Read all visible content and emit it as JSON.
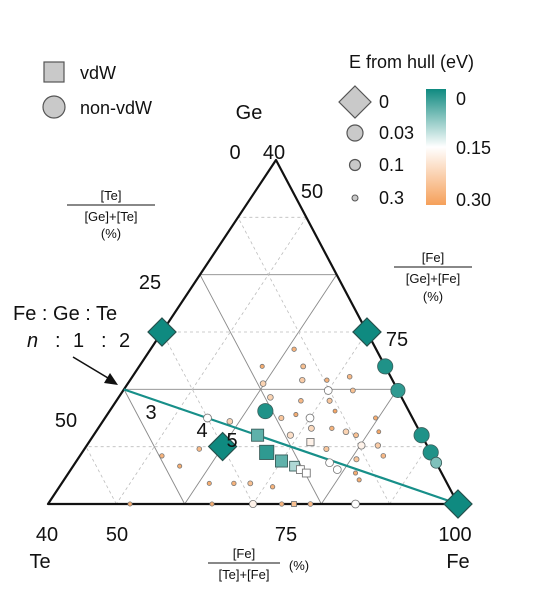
{
  "chart_data": {
    "type": "scatter",
    "title": "",
    "vertices": {
      "top": "Ge",
      "left": "Te",
      "right": "Fe"
    },
    "corner_values": {
      "top": "40",
      "top_left": "0",
      "left": "40",
      "right": "100"
    },
    "ticks": {
      "te_axis": [
        "25",
        "50"
      ],
      "fe_axis_right": [
        "50",
        "75"
      ],
      "fe_axis_bottom": [
        "50",
        "75"
      ]
    },
    "axis_labels": {
      "te": {
        "num": "[Te]",
        "den": "[Ge]+[Te]",
        "unit": "(%)"
      },
      "fe_right": {
        "num": "[Fe]",
        "den": "[Ge]+[Fe]",
        "unit": "(%)"
      },
      "fe_bottom": {
        "num": "[Fe]",
        "den": "[Te]+[Fe]",
        "unit": "(%)"
      }
    },
    "legend": {
      "types": [
        {
          "label": "vdW",
          "shape": "square"
        },
        {
          "label": "non-vdW",
          "shape": "circle"
        }
      ],
      "hull_title": "E from hull (eV)",
      "sizes": [
        "0",
        "0.03",
        "0.1",
        "0.3"
      ],
      "colorbar": {
        "ticks": [
          "0",
          "0.15",
          "0.30"
        ],
        "colors": [
          "#0f8a80",
          "#ffffff",
          "#f5a05a"
        ]
      }
    },
    "annotation": {
      "line1": "Fe : Ge : Te",
      "line2": [
        "n",
        ":",
        "1",
        ":",
        "2"
      ],
      "series_labels": [
        "3",
        "4",
        "5"
      ]
    },
    "series_line_color": "#178f89",
    "points": [
      {
        "fe": 0,
        "ge": 50,
        "te": 50,
        "shape": "diamond",
        "e": 0
      },
      {
        "fe": 50,
        "ge": 50,
        "te": 0,
        "shape": "diamond",
        "e": 0
      },
      {
        "fe": 100,
        "ge": 0,
        "te": 0,
        "shape": "diamond",
        "e": 0
      },
      {
        "fe": 33.3,
        "ge": 16.7,
        "te": 50,
        "shape": "diamond",
        "e": 0
      },
      {
        "fe": 60,
        "ge": 40,
        "te": 0,
        "shape": "circle",
        "e": 0.01
      },
      {
        "fe": 67,
        "ge": 33,
        "te": 0,
        "shape": "circle",
        "e": 0.02
      },
      {
        "fe": 80,
        "ge": 20,
        "te": 0,
        "shape": "circle",
        "e": 0.01
      },
      {
        "fe": 85,
        "ge": 15,
        "te": 0,
        "shape": "circle",
        "e": 0.01
      },
      {
        "fe": 88,
        "ge": 12,
        "te": 0,
        "shape": "circle",
        "e": 0.07
      },
      {
        "fe": 38,
        "ge": 27,
        "te": 35,
        "shape": "circle",
        "e": 0.01
      },
      {
        "fe": 50,
        "ge": 33,
        "te": 17,
        "shape": "circle",
        "e": 0.15
      },
      {
        "fe": 40,
        "ge": 20,
        "te": 40,
        "shape": "square",
        "e": 0.05
      },
      {
        "fe": 45,
        "ge": 15,
        "te": 40,
        "shape": "square",
        "e": 0.02
      },
      {
        "fe": 50,
        "ge": 12.5,
        "te": 37.5,
        "shape": "square",
        "e": 0.05
      },
      {
        "fe": 54,
        "ge": 11,
        "te": 35,
        "shape": "square",
        "e": 0.1
      },
      {
        "fe": 56,
        "ge": 10,
        "te": 34,
        "shape": "square",
        "e": 0.15
      },
      {
        "fe": 58,
        "ge": 9,
        "te": 33,
        "shape": "square",
        "e": 0.15
      },
      {
        "fe": 54,
        "ge": 18,
        "te": 28,
        "shape": "square",
        "e": 0.17
      },
      {
        "fe": 50,
        "ge": 25,
        "te": 25,
        "shape": "circle",
        "e": 0.15
      },
      {
        "fe": 65,
        "ge": 10,
        "te": 25,
        "shape": "circle",
        "e": 0.15
      },
      {
        "fe": 67,
        "ge": 17,
        "te": 16,
        "shape": "circle",
        "e": 0.17
      },
      {
        "fe": 62,
        "ge": 12,
        "te": 26,
        "shape": "circle",
        "e": 0.15
      },
      {
        "fe": 50,
        "ge": 0,
        "te": 50,
        "shape": "circle",
        "e": 0.17
      },
      {
        "fe": 75,
        "ge": 0,
        "te": 25,
        "shape": "circle",
        "e": 0.15
      },
      {
        "fe": 60,
        "ge": 0,
        "te": 40,
        "shape": "square",
        "e": 0.25
      },
      {
        "fe": 25,
        "ge": 25,
        "te": 50,
        "shape": "circle",
        "e": 0.15
      },
      {
        "fe": 28,
        "ge": 16,
        "te": 56,
        "shape": "circle",
        "e": 0.26
      },
      {
        "fe": 20,
        "ge": 14,
        "te": 66,
        "shape": "circle",
        "e": 0.27
      },
      {
        "fe": 26,
        "ge": 11,
        "te": 63,
        "shape": "circle",
        "e": 0.28
      },
      {
        "fe": 31,
        "ge": 24,
        "te": 45,
        "shape": "circle",
        "e": 0.22
      },
      {
        "fe": 33,
        "ge": 35,
        "te": 32,
        "shape": "circle",
        "e": 0.22
      },
      {
        "fe": 40,
        "ge": 40,
        "te": 20,
        "shape": "circle",
        "e": 0.25
      },
      {
        "fe": 42,
        "ge": 36,
        "te": 22,
        "shape": "circle",
        "e": 0.23
      },
      {
        "fe": 43,
        "ge": 25,
        "te": 32,
        "shape": "circle",
        "e": 0.24
      },
      {
        "fe": 45,
        "ge": 30,
        "te": 25,
        "shape": "circle",
        "e": 0.26
      },
      {
        "fe": 46,
        "ge": 26,
        "te": 28,
        "shape": "circle",
        "e": 0.28
      },
      {
        "fe": 37,
        "ge": 31,
        "te": 32,
        "shape": "circle",
        "e": 0.22
      },
      {
        "fe": 48,
        "ge": 36,
        "te": 16,
        "shape": "circle",
        "e": 0.27
      },
      {
        "fe": 52,
        "ge": 30,
        "te": 18,
        "shape": "circle",
        "e": 0.24
      },
      {
        "fe": 55,
        "ge": 27,
        "te": 18,
        "shape": "circle",
        "e": 0.29
      },
      {
        "fe": 56,
        "ge": 33,
        "te": 11,
        "shape": "circle",
        "e": 0.25
      },
      {
        "fe": 57,
        "ge": 22,
        "te": 21,
        "shape": "circle",
        "e": 0.27
      },
      {
        "fe": 48,
        "ge": 20,
        "te": 32,
        "shape": "circle",
        "e": 0.2
      },
      {
        "fe": 52,
        "ge": 22,
        "te": 26,
        "shape": "circle",
        "e": 0.21
      },
      {
        "fe": 59,
        "ge": 16,
        "te": 25,
        "shape": "circle",
        "e": 0.24
      },
      {
        "fe": 61,
        "ge": 21,
        "te": 18,
        "shape": "circle",
        "e": 0.22
      },
      {
        "fe": 64,
        "ge": 20,
        "te": 16,
        "shape": "circle",
        "e": 0.25
      },
      {
        "fe": 66,
        "ge": 25,
        "te": 9,
        "shape": "circle",
        "e": 0.28
      },
      {
        "fe": 69,
        "ge": 21,
        "te": 10,
        "shape": "circle",
        "e": 0.29
      },
      {
        "fe": 71,
        "ge": 17,
        "te": 12,
        "shape": "circle",
        "e": 0.23
      },
      {
        "fe": 74,
        "ge": 14,
        "te": 12,
        "shape": "circle",
        "e": 0.26
      },
      {
        "fe": 68,
        "ge": 13,
        "te": 19,
        "shape": "circle",
        "e": 0.24
      },
      {
        "fe": 70,
        "ge": 9,
        "te": 21,
        "shape": "circle",
        "e": 0.28
      },
      {
        "fe": 35,
        "ge": 45,
        "te": 20,
        "shape": "circle",
        "e": 0.27
      },
      {
        "fe": 30,
        "ge": 40,
        "te": 30,
        "shape": "circle",
        "e": 0.28
      },
      {
        "fe": 53,
        "ge": 37,
        "te": 10,
        "shape": "circle",
        "e": 0.26
      },
      {
        "fe": 36,
        "ge": 6,
        "te": 58,
        "shape": "circle",
        "e": 0.28
      },
      {
        "fe": 42,
        "ge": 6,
        "te": 52,
        "shape": "circle",
        "e": 0.27
      },
      {
        "fe": 46,
        "ge": 6,
        "te": 48,
        "shape": "circle",
        "e": 0.25
      },
      {
        "fe": 52,
        "ge": 5,
        "te": 43,
        "shape": "circle",
        "e": 0.27
      },
      {
        "fe": 72,
        "ge": 7,
        "te": 21,
        "shape": "circle",
        "e": 0.28
      },
      {
        "fe": 20,
        "ge": 0,
        "te": 80,
        "shape": "circle",
        "e": 0.28
      },
      {
        "fe": 40,
        "ge": 0,
        "te": 60,
        "shape": "circle",
        "e": 0.28
      },
      {
        "fe": 57,
        "ge": 0,
        "te": 43,
        "shape": "circle",
        "e": 0.27
      },
      {
        "fe": 64,
        "ge": 0,
        "te": 36,
        "shape": "circle",
        "e": 0.26
      }
    ]
  }
}
